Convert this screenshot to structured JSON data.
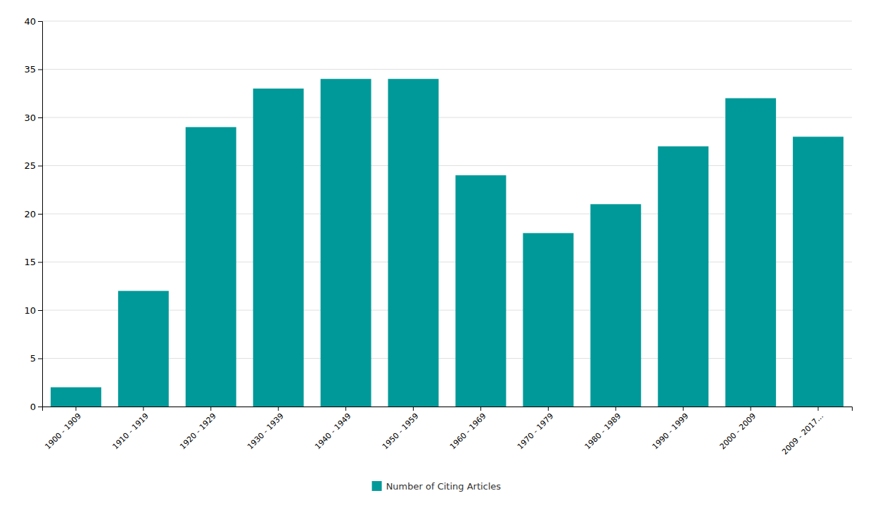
{
  "chart_data": {
    "type": "bar",
    "categories": [
      "1900 - 1909",
      "1910 - 1919",
      "1920 - 1929",
      "1930 - 1939",
      "1940 - 1949",
      "1950 - 1959",
      "1960 - 1969",
      "1970 - 1979",
      "1980 - 1989",
      "1990 - 1999",
      "2000 - 2009",
      "2009 - 2017..."
    ],
    "series": [
      {
        "name": "Number of Citing Articles",
        "color": "#009999",
        "values": [
          2,
          12,
          29,
          33,
          34,
          34,
          24,
          18,
          21,
          27,
          32,
          28
        ]
      }
    ],
    "ylim": [
      0,
      40
    ],
    "yticks": [
      0,
      5,
      10,
      15,
      20,
      25,
      30,
      35,
      40
    ],
    "grid": true,
    "legend": "bottom"
  }
}
